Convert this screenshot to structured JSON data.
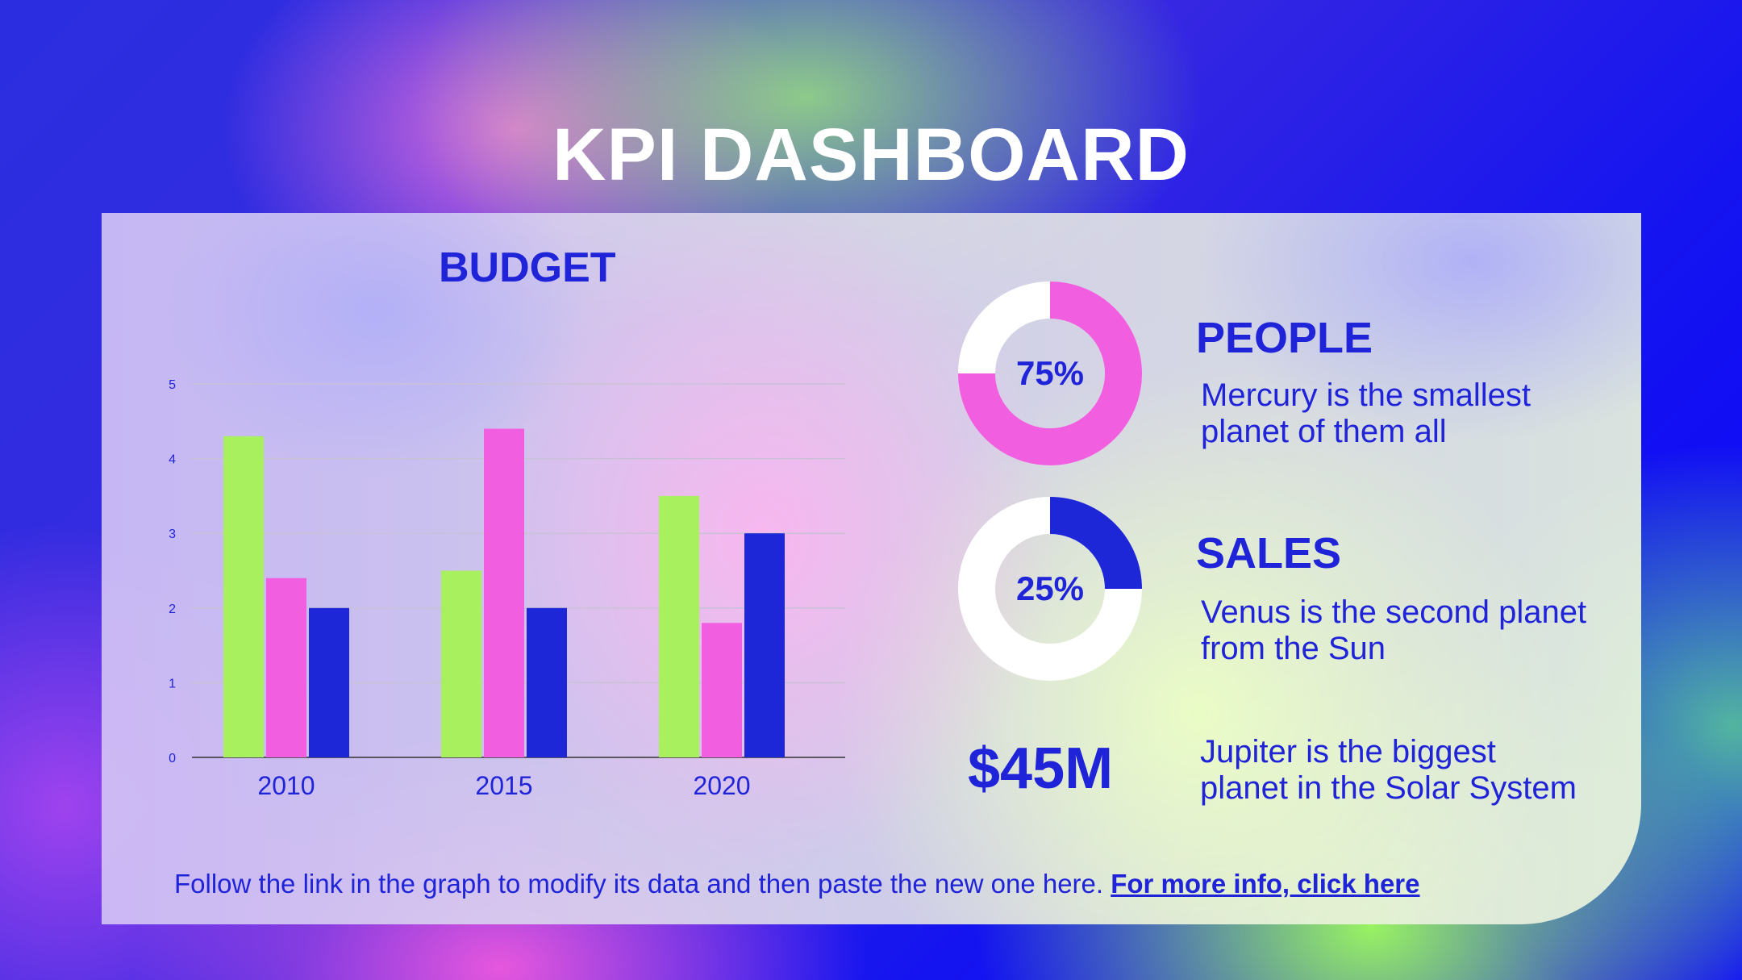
{
  "title": "KPI DASHBOARD",
  "budget": {
    "title": "BUDGET"
  },
  "chart_data": {
    "type": "bar",
    "categories": [
      "2010",
      "2015",
      "2020"
    ],
    "series": [
      {
        "values": [
          4.3,
          2.5,
          3.5
        ],
        "color": "#a8f05e"
      },
      {
        "values": [
          2.4,
          4.4,
          1.8
        ],
        "color": "#f25ee0"
      },
      {
        "values": [
          2,
          2,
          3
        ],
        "color": "#1e27d8"
      }
    ],
    "ylim": [
      0,
      5
    ],
    "yticks": [
      "0",
      "1",
      "2",
      "3",
      "4",
      "5"
    ],
    "grid": true,
    "xlabel": "",
    "ylabel": ""
  },
  "kpis": {
    "people": {
      "percent": 0.75,
      "label": "75%",
      "title": "PEOPLE",
      "line1": "Mercury is the smallest",
      "line2": "planet of them all",
      "color": "#f25ee0"
    },
    "sales": {
      "percent": 0.25,
      "label": "25%",
      "title": "SALES",
      "line1": "Venus is the second planet",
      "line2": "from the Sun",
      "color": "#1e27d8"
    },
    "value": {
      "amount": "$45M",
      "line1": "Jupiter is the biggest",
      "line2": "planet in the Solar System"
    }
  },
  "footer": {
    "text": "Follow the link in the graph to modify its data and then paste the new one here.",
    "link": "For more info, click here"
  },
  "colors": {
    "accent": "#2024d8",
    "track": "#ffffff"
  }
}
